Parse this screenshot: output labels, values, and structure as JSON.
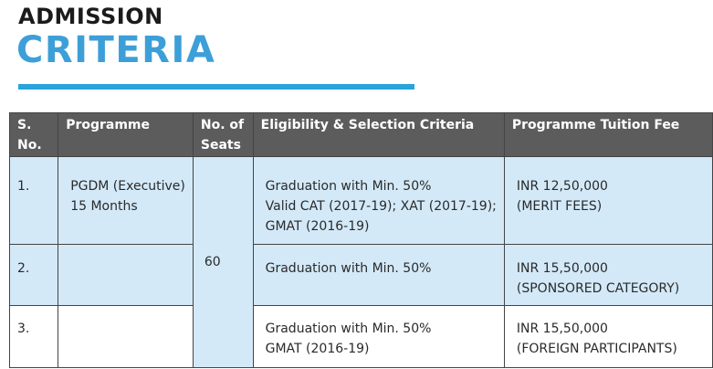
{
  "heading": {
    "line1": "ADMISSION",
    "line2": "CRITERIA"
  },
  "table": {
    "headers": {
      "sno": "S. No.",
      "programme": "Programme",
      "seats_line1": "No. of",
      "seats_line2": "Seats",
      "eligibility": "Eligibility & Selection Criteria",
      "fee": "Programme Tuition Fee"
    },
    "seats_value": "60",
    "rows": [
      {
        "sno": "1.",
        "programme": [
          "PGDM (Executive)",
          "15 Months"
        ],
        "eligibility": [
          "Graduation with Min. 50%",
          "Valid CAT (2017-19); XAT (2017-19);",
          "GMAT (2016-19)"
        ],
        "fee": [
          "INR 12,50,000",
          "(MERIT FEES)"
        ]
      },
      {
        "sno": "2.",
        "programme": [],
        "eligibility": [
          "Graduation with Min. 50%"
        ],
        "fee": [
          "INR 15,50,000",
          "(SPONSORED CATEGORY)"
        ]
      },
      {
        "sno": "3.",
        "programme": [],
        "eligibility": [
          "Graduation with Min. 50%",
          "GMAT (2016-19)"
        ],
        "fee": [
          "INR 15,50,000",
          "(FOREIGN PARTICIPANTS)"
        ]
      }
    ]
  },
  "colors": {
    "title_dark": "#1b1b1b",
    "title_blue": "#3d9fd8",
    "accent_rule": "#29a3dc",
    "header_bg": "#5c5c5c",
    "row_blue": "#d3e9f8"
  }
}
